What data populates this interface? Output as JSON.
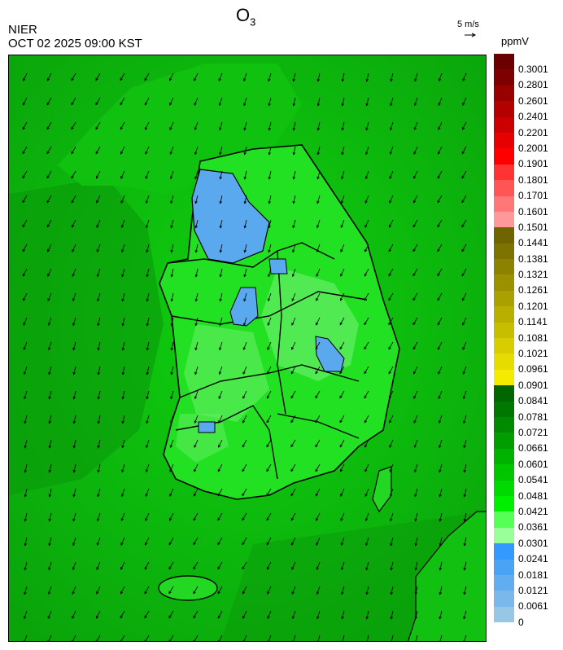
{
  "header": {
    "title_main": "O",
    "title_sub": "3",
    "organization": "NIER",
    "datetime": "OCT 02 2025 09:00 KST",
    "reference_vector": "5 m/s",
    "unit": "ppmV"
  },
  "legend": {
    "ticks": [
      "0.3001",
      "0.2801",
      "0.2601",
      "0.2401",
      "0.2201",
      "0.2001",
      "0.1901",
      "0.1801",
      "0.1701",
      "0.1601",
      "0.1501",
      "0.1441",
      "0.1381",
      "0.1321",
      "0.1261",
      "0.1201",
      "0.1141",
      "0.1081",
      "0.1021",
      "0.0961",
      "0.0901",
      "0.0841",
      "0.0781",
      "0.0721",
      "0.0661",
      "0.0601",
      "0.0541",
      "0.0481",
      "0.0421",
      "0.0361",
      "0.0301",
      "0.0241",
      "0.0181",
      "0.0121",
      "0.0061",
      "0"
    ],
    "colors": [
      "#6b0000",
      "#7f0000",
      "#990000",
      "#b30000",
      "#cc0000",
      "#e60000",
      "#ff0000",
      "#ff3333",
      "#ff5555",
      "#ff7777",
      "#ff9999",
      "#6e6400",
      "#7d7300",
      "#8c8200",
      "#9b9100",
      "#aaa000",
      "#b9af00",
      "#c8be00",
      "#d7cd00",
      "#e6dc00",
      "#f5eb00",
      "#006600",
      "#007700",
      "#008a00",
      "#009e00",
      "#00b200",
      "#00c600",
      "#00da00",
      "#00ee00",
      "#55ff55",
      "#99ff99",
      "#3399ff",
      "#4aa3f5",
      "#62adf0",
      "#7ab7ea",
      "#96c8e6"
    ]
  },
  "map": {
    "background_level": "0.0541",
    "wind_direction": "northeasterly"
  }
}
